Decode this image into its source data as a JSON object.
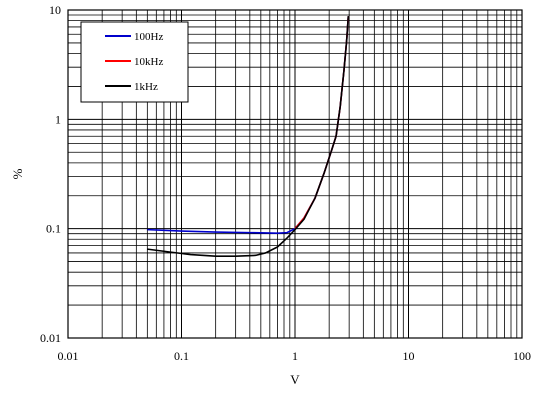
{
  "chart_data": {
    "type": "line",
    "title": "",
    "xlabel": "V",
    "ylabel": "%",
    "xscale": "log",
    "yscale": "log",
    "xlim": [
      0.01,
      100
    ],
    "ylim": [
      0.01,
      10
    ],
    "grid": true,
    "legend": "top-left",
    "x_ticks": [
      {
        "value": 0.01,
        "label": "0.01"
      },
      {
        "value": 0.1,
        "label": "0.1"
      },
      {
        "value": 1,
        "label": "1"
      },
      {
        "value": 10,
        "label": "10"
      },
      {
        "value": 100,
        "label": "100"
      }
    ],
    "y_ticks": [
      {
        "value": 0.01,
        "label": "0.01"
      },
      {
        "value": 0.1,
        "label": "0.1"
      },
      {
        "value": 1,
        "label": "1"
      },
      {
        "value": 10,
        "label": "10"
      }
    ],
    "series": [
      {
        "name": "100Hz",
        "color": "#0000cc",
        "points": [
          [
            0.05,
            0.098
          ],
          [
            0.1,
            0.095
          ],
          [
            0.2,
            0.093
          ],
          [
            0.4,
            0.092
          ],
          [
            0.7,
            0.091
          ],
          [
            0.85,
            0.092
          ],
          [
            1.0,
            0.1
          ],
          [
            1.2,
            0.125
          ],
          [
            1.5,
            0.19
          ],
          [
            1.8,
            0.32
          ],
          [
            2.1,
            0.52
          ],
          [
            2.3,
            0.7
          ],
          [
            2.5,
            1.3
          ],
          [
            2.7,
            2.8
          ],
          [
            2.85,
            5.2
          ],
          [
            2.95,
            8.8
          ]
        ]
      },
      {
        "name": "10kHz",
        "color": "#ff0000",
        "points": [
          [
            1.0,
            0.1
          ],
          [
            1.2,
            0.125
          ],
          [
            1.5,
            0.19
          ],
          [
            1.8,
            0.32
          ],
          [
            2.1,
            0.52
          ],
          [
            2.3,
            0.7
          ],
          [
            2.5,
            1.3
          ],
          [
            2.7,
            2.8
          ],
          [
            2.85,
            5.2
          ],
          [
            2.95,
            8.8
          ]
        ]
      },
      {
        "name": "1kHz",
        "color": "#000000",
        "points": [
          [
            0.05,
            0.065
          ],
          [
            0.08,
            0.061
          ],
          [
            0.12,
            0.058
          ],
          [
            0.2,
            0.056
          ],
          [
            0.3,
            0.056
          ],
          [
            0.45,
            0.057
          ],
          [
            0.55,
            0.06
          ],
          [
            0.7,
            0.068
          ],
          [
            0.85,
            0.082
          ],
          [
            1.0,
            0.098
          ],
          [
            1.2,
            0.122
          ],
          [
            1.5,
            0.19
          ],
          [
            1.8,
            0.32
          ],
          [
            2.1,
            0.52
          ],
          [
            2.3,
            0.7
          ],
          [
            2.5,
            1.3
          ],
          [
            2.7,
            2.8
          ],
          [
            2.85,
            5.2
          ],
          [
            2.95,
            8.8
          ]
        ]
      }
    ]
  }
}
